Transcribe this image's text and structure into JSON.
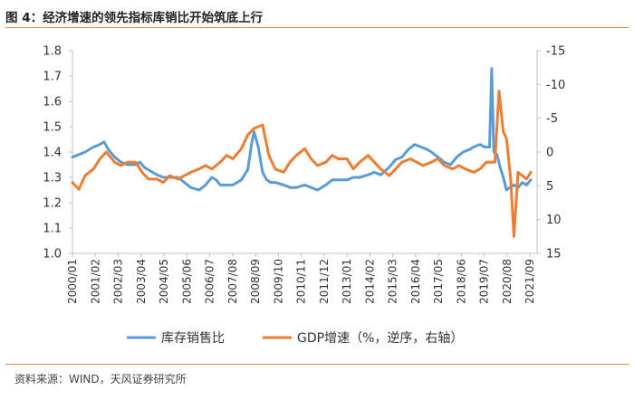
{
  "header": {
    "title": "图 4：经济增速的领先指标库销比开始筑底上行"
  },
  "footer": {
    "source": "资料来源：WIND，天风证券研究所"
  },
  "colors": {
    "series_inventory": "#5b9bd5",
    "series_gdp": "#ed7d31",
    "rule": "#e8893a"
  },
  "chart_data": {
    "type": "line",
    "title": "经济增速的领先指标库销比开始筑底上行",
    "xlabel": "",
    "ylabel_left": "",
    "ylabel_right": "",
    "ylim_left": [
      1.0,
      1.8
    ],
    "ylim_right": [
      15,
      -15
    ],
    "left_ticks": [
      "1.0",
      "1.1",
      "1.2",
      "1.3",
      "1.4",
      "1.5",
      "1.6",
      "1.7",
      "1.8"
    ],
    "right_ticks": [
      "-15",
      "-10",
      "-5",
      "0",
      "5",
      "10",
      "15"
    ],
    "x_ticks": [
      "2000/01",
      "2001/02",
      "2002/03",
      "2003/04",
      "2004/05",
      "2005/06",
      "2006/07",
      "2007/08",
      "2008/09",
      "2009/10",
      "2010/11",
      "2011/12",
      "2013/01",
      "2014/02",
      "2015/03",
      "2016/04",
      "2017/05",
      "2018/06",
      "2019/07",
      "2020/08",
      "2021/09"
    ],
    "legend": [
      "库存销售比",
      "GDP增速（%，逆序，右轴）"
    ],
    "legend_position": "bottom",
    "series": [
      {
        "name": "库存销售比",
        "axis": "left",
        "x": [
          2000.0,
          2000.3,
          2000.6,
          2001.0,
          2001.3,
          2001.5,
          2001.7,
          2002.0,
          2002.3,
          2002.6,
          2003.0,
          2003.2,
          2003.4,
          2003.6,
          2004.0,
          2004.3,
          2004.6,
          2005.0,
          2005.3,
          2005.6,
          2006.0,
          2006.3,
          2006.6,
          2006.8,
          2007.0,
          2007.3,
          2007.6,
          2008.0,
          2008.3,
          2008.5,
          2008.6,
          2008.8,
          2009.0,
          2009.2,
          2009.4,
          2009.6,
          2010.0,
          2010.3,
          2010.6,
          2011.0,
          2011.3,
          2011.6,
          2012.0,
          2012.3,
          2012.6,
          2013.0,
          2013.3,
          2013.6,
          2014.0,
          2014.3,
          2014.6,
          2015.0,
          2015.3,
          2015.6,
          2015.9,
          2016.2,
          2016.5,
          2016.8,
          2017.0,
          2017.3,
          2017.6,
          2017.9,
          2018.2,
          2018.5,
          2018.8,
          2019.0,
          2019.3,
          2019.5,
          2019.75,
          2019.85,
          2019.95,
          2020.1,
          2020.25,
          2020.4,
          2020.55,
          2020.7,
          2020.9,
          2021.1,
          2021.3,
          2021.5,
          2021.7
        ],
        "values": [
          1.38,
          1.39,
          1.4,
          1.42,
          1.43,
          1.44,
          1.41,
          1.38,
          1.36,
          1.35,
          1.35,
          1.36,
          1.34,
          1.33,
          1.31,
          1.3,
          1.3,
          1.3,
          1.28,
          1.26,
          1.25,
          1.27,
          1.3,
          1.29,
          1.27,
          1.27,
          1.27,
          1.29,
          1.33,
          1.44,
          1.48,
          1.42,
          1.32,
          1.29,
          1.28,
          1.28,
          1.27,
          1.26,
          1.26,
          1.27,
          1.26,
          1.25,
          1.27,
          1.29,
          1.29,
          1.29,
          1.3,
          1.3,
          1.31,
          1.32,
          1.31,
          1.34,
          1.37,
          1.38,
          1.41,
          1.43,
          1.42,
          1.41,
          1.4,
          1.38,
          1.36,
          1.35,
          1.38,
          1.4,
          1.41,
          1.42,
          1.43,
          1.42,
          1.42,
          1.73,
          1.4,
          1.39,
          1.34,
          1.3,
          1.25,
          1.26,
          1.27,
          1.26,
          1.28,
          1.27,
          1.29
        ]
      },
      {
        "name": "GDP增速（%，逆序，右轴）",
        "axis": "right",
        "x": [
          2000.0,
          2000.3,
          2000.6,
          2001.0,
          2001.3,
          2001.6,
          2002.0,
          2002.3,
          2002.6,
          2003.0,
          2003.3,
          2003.6,
          2004.0,
          2004.3,
          2004.6,
          2005.0,
          2005.3,
          2005.6,
          2006.0,
          2006.3,
          2006.6,
          2007.0,
          2007.3,
          2007.6,
          2008.0,
          2008.3,
          2008.6,
          2009.0,
          2009.3,
          2009.6,
          2010.0,
          2010.3,
          2010.6,
          2011.0,
          2011.3,
          2011.6,
          2012.0,
          2012.3,
          2012.6,
          2013.0,
          2013.3,
          2013.6,
          2014.0,
          2014.3,
          2014.6,
          2015.0,
          2015.3,
          2015.6,
          2016.0,
          2016.3,
          2016.6,
          2017.0,
          2017.3,
          2017.6,
          2018.0,
          2018.3,
          2018.6,
          2019.0,
          2019.3,
          2019.6,
          2019.8,
          2020.0,
          2020.2,
          2020.4,
          2020.55,
          2020.75,
          2020.9,
          2021.1,
          2021.3,
          2021.5,
          2021.7
        ],
        "values": [
          4.5,
          5.5,
          3.5,
          2.5,
          1.0,
          0.0,
          1.5,
          2.0,
          1.5,
          1.5,
          3.0,
          4.0,
          4.0,
          4.5,
          3.5,
          4.0,
          3.5,
          3.0,
          2.5,
          2.0,
          2.5,
          1.5,
          0.5,
          1.0,
          -0.5,
          -2.5,
          -3.5,
          -4.0,
          0.5,
          2.5,
          3.0,
          1.5,
          0.5,
          -0.5,
          1.0,
          2.0,
          1.5,
          0.5,
          1.0,
          1.0,
          2.5,
          1.5,
          0.5,
          1.5,
          2.5,
          3.5,
          2.5,
          1.5,
          1.0,
          1.5,
          2.0,
          1.5,
          1.0,
          2.0,
          2.5,
          2.0,
          2.5,
          3.0,
          2.5,
          1.5,
          1.5,
          1.5,
          -9.0,
          -3.0,
          -2.0,
          4.0,
          12.5,
          3.0,
          3.5,
          4.0,
          3.0
        ]
      }
    ]
  }
}
